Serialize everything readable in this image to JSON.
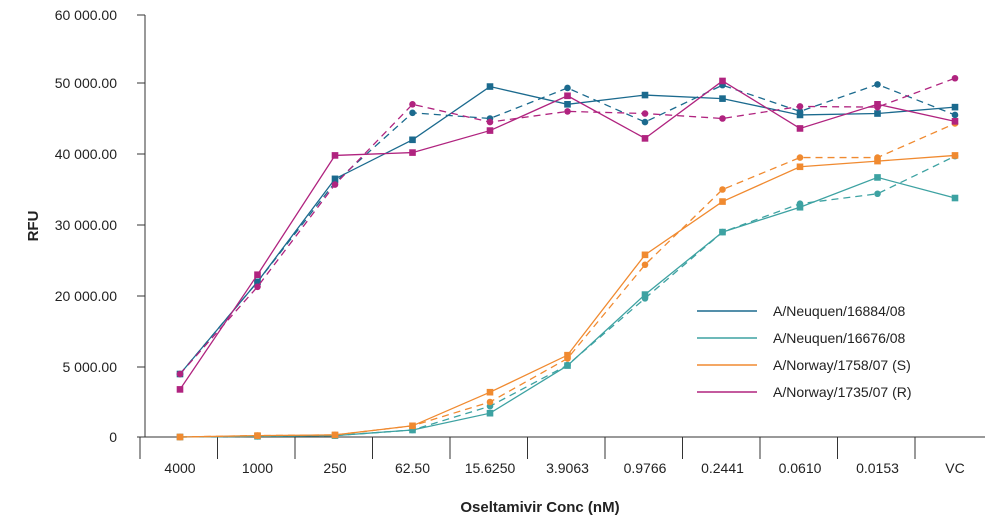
{
  "chart_data": {
    "type": "line",
    "xlabel": "Oseltamivir Conc (nM)",
    "ylabel": "RFU",
    "categories": [
      "4000",
      "1000",
      "250",
      "62.50",
      "15.6250",
      "3.9063",
      "0.9766",
      "0.2441",
      "0.0610",
      "0.0153",
      "VC"
    ],
    "y_ticks": [
      0,
      5000,
      20000,
      30000,
      40000,
      50000,
      60000
    ],
    "y_tick_labels": [
      "0",
      "5 000.00",
      "20 000.00",
      "30 000.00",
      "40 000.00",
      "50 000.00",
      "60 000.00"
    ],
    "ylim": [
      0,
      60000
    ],
    "grid": false,
    "legend_position": "right",
    "series": [
      {
        "name": "A/Neuquen/16884/08",
        "color": "#1b6a8e",
        "solid": [
          4500,
          22000,
          36500,
          42000,
          49500,
          47000,
          48300,
          47800,
          45500,
          45700,
          46600
        ],
        "dashed": [
          4500,
          22000,
          36000,
          45800,
          45000,
          49300,
          44500,
          49700,
          46000,
          49800,
          45500
        ]
      },
      {
        "name": "A/Neuquen/16676/08",
        "color": "#3da2a2",
        "solid": [
          0,
          50,
          100,
          500,
          1700,
          5300,
          20200,
          29000,
          32500,
          36700,
          33800
        ],
        "dashed": [
          0,
          50,
          100,
          500,
          2200,
          5400,
          19500,
          29000,
          33000,
          34400,
          39700
        ]
      },
      {
        "name": "A/Norway/1758/07 (S)",
        "color": "#f08a30",
        "solid": [
          0,
          100,
          150,
          800,
          3200,
          7500,
          25800,
          33300,
          38200,
          39000,
          39800
        ],
        "dashed": [
          0,
          100,
          150,
          800,
          2500,
          6800,
          24400,
          35000,
          39500,
          39500,
          44300
        ]
      },
      {
        "name": "A/Norway/1735/07 (R)",
        "color": "#b0237f",
        "solid": [
          3400,
          23000,
          39800,
          40200,
          43300,
          48200,
          42200,
          50300,
          43600,
          47000,
          44600
        ],
        "dashed": [
          4500,
          21300,
          35700,
          47000,
          44500,
          46000,
          45700,
          45000,
          46700,
          46600,
          50700
        ]
      }
    ]
  }
}
